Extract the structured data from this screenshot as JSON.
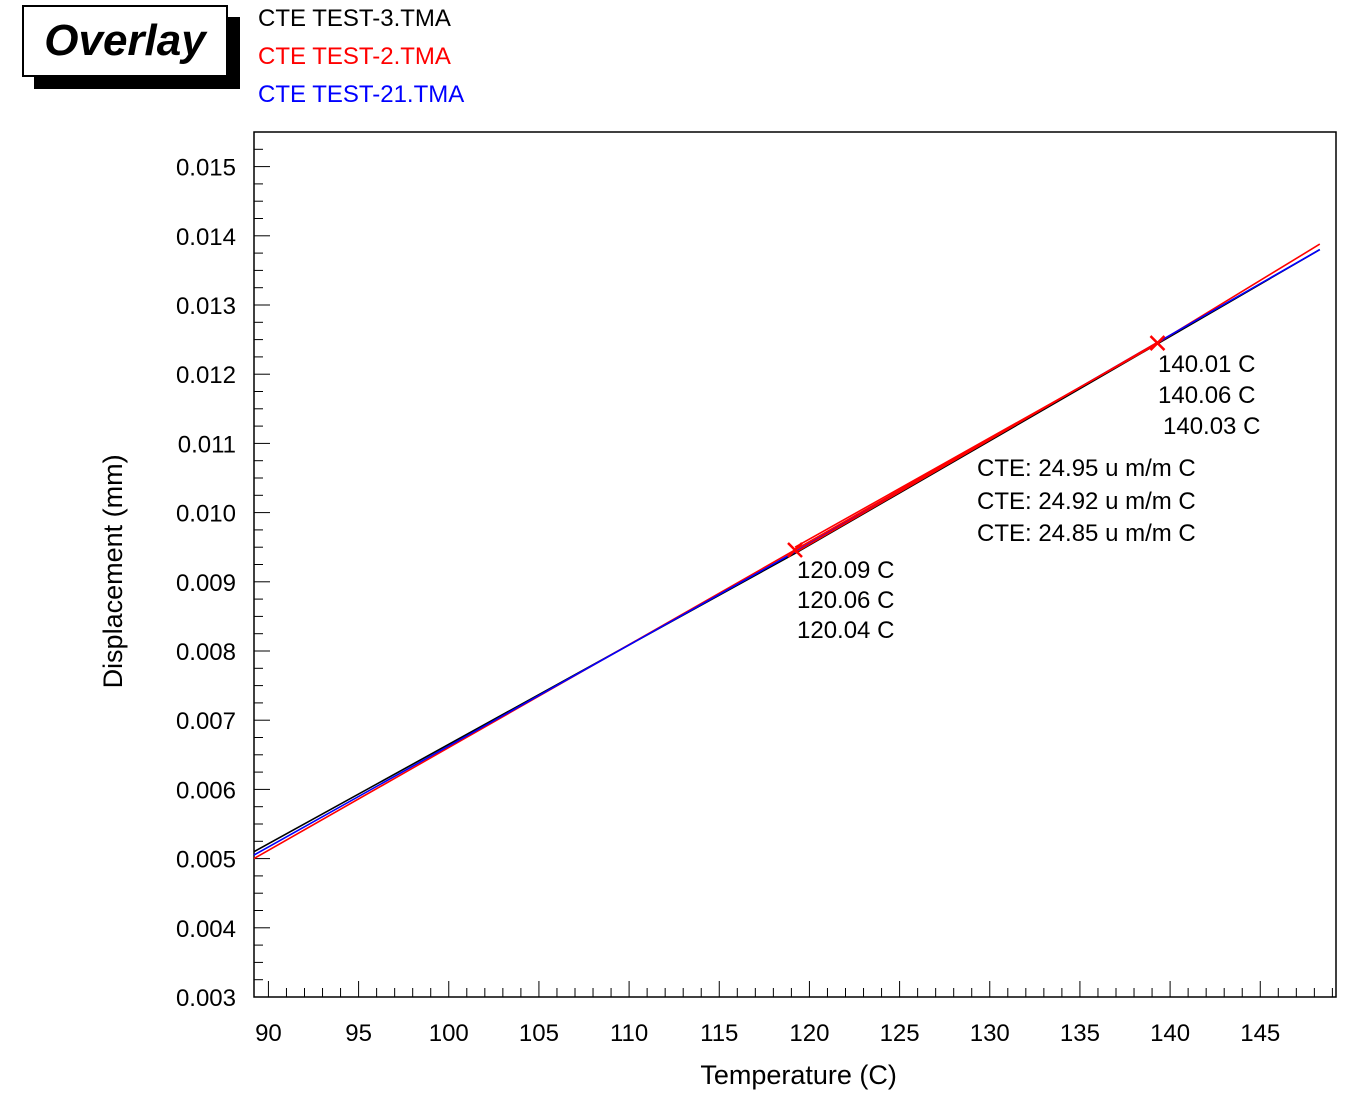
{
  "header": {
    "overlay_label": "Overlay"
  },
  "chart_data": {
    "type": "line",
    "xlabel": "Temperature (C)",
    "ylabel": "Displacement (mm)",
    "xlim": [
      89.2,
      149.2
    ],
    "ylim": [
      0.003,
      0.0155
    ],
    "x_ticks": [
      90,
      95,
      100,
      105,
      110,
      115,
      120,
      125,
      130,
      135,
      140,
      145
    ],
    "y_ticks": [
      "0.003",
      "0.004",
      "0.005",
      "0.006",
      "0.007",
      "0.008",
      "0.009",
      "0.010",
      "0.011",
      "0.012",
      "0.013",
      "0.014",
      "0.015"
    ],
    "grid": false,
    "legend_position": "top-left",
    "series": [
      {
        "name": "CTE TEST-3.TMA",
        "color": "#000000",
        "x": [
          89.2,
          119.2,
          139.3,
          148.3
        ],
        "y": [
          0.0051,
          0.00941,
          0.01244,
          0.0138
        ]
      },
      {
        "name": "CTE TEST-2.TMA",
        "color": "#ff0000",
        "x": [
          89.2,
          119.2,
          139.3,
          148.3
        ],
        "y": [
          0.005,
          0.00946,
          0.01245,
          0.01388
        ]
      },
      {
        "name": "CTE TEST-21.TMA",
        "color": "#0000ff",
        "x": [
          89.2,
          119.2,
          139.3,
          148.3
        ],
        "y": [
          0.00505,
          0.00943,
          0.01246,
          0.0138
        ]
      }
    ],
    "markers": [
      {
        "x": 119.2,
        "y": 0.00946,
        "color": "#ff0000"
      },
      {
        "x": 139.3,
        "y": 0.01245,
        "color": "#ff0000"
      }
    ],
    "fit_lines": [
      {
        "x": [
          119.2,
          139.3
        ],
        "y": [
          0.00946,
          0.01245
        ]
      },
      {
        "x": [
          119.2,
          139.3
        ],
        "y": [
          0.00942,
          0.01246
        ]
      },
      {
        "x": [
          119.2,
          139.3
        ],
        "y": [
          0.0095,
          0.01244
        ]
      }
    ],
    "annotations": {
      "start_temps": [
        "120.09 C",
        "120.06 C",
        "120.04 C"
      ],
      "end_temps": [
        "140.01 C",
        "140.06 C",
        "140.03 C"
      ],
      "cte_values": [
        "CTE: 24.95 u m/m C",
        "CTE: 24.92 u m/m C",
        "CTE: 24.85 u m/m C"
      ]
    }
  }
}
